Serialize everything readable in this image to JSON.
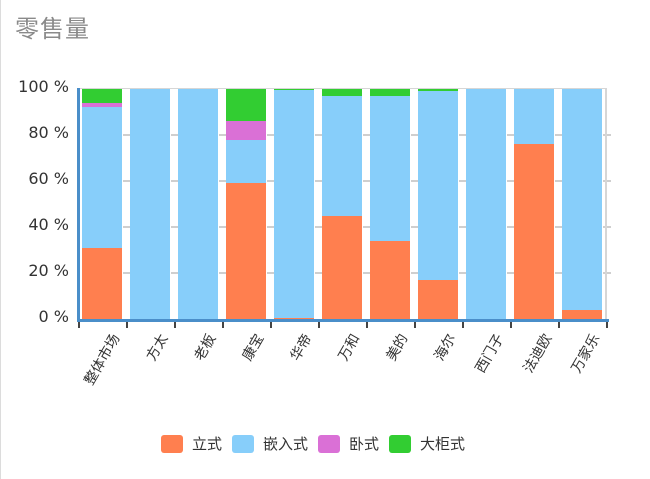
{
  "title": "零售量",
  "legend": [
    {
      "label": "立式",
      "color": "#ff7f4f"
    },
    {
      "label": "嵌入式",
      "color": "#87cefa"
    },
    {
      "label": "卧式",
      "color": "#da70d6"
    },
    {
      "label": "大柜式",
      "color": "#32cd32"
    }
  ],
  "y_ticks": [
    "100 %",
    "80 %",
    "60 %",
    "40 %",
    "20 %",
    "0 %"
  ],
  "chart_data": {
    "type": "bar",
    "stacked": true,
    "title": "零售量",
    "xlabel": "",
    "ylabel": "",
    "ylim": [
      0,
      100
    ],
    "y_unit": "%",
    "y_ticks": [
      0,
      20,
      40,
      60,
      80,
      100
    ],
    "grid": true,
    "legend_position": "bottom",
    "categories": [
      "整体市场",
      "方太",
      "老板",
      "康宝",
      "华帝",
      "万和",
      "美的",
      "海尔",
      "西门子",
      "法迪欧",
      "万家乐"
    ],
    "series": [
      {
        "name": "立式",
        "color": "#ff7f4f",
        "values": [
          31,
          0,
          0,
          59,
          0.5,
          45,
          34,
          17,
          0,
          76,
          4
        ]
      },
      {
        "name": "嵌入式",
        "color": "#87cefa",
        "values": [
          61,
          100,
          100,
          19,
          99,
          52,
          63,
          82,
          100,
          24,
          96
        ]
      },
      {
        "name": "卧式",
        "color": "#da70d6",
        "values": [
          2,
          0,
          0,
          8,
          0,
          0,
          0,
          0,
          0,
          0,
          0
        ]
      },
      {
        "name": "大柜式",
        "color": "#32cd32",
        "values": [
          6,
          0,
          0,
          14,
          0.5,
          3,
          3,
          1,
          0,
          0,
          0
        ]
      }
    ]
  }
}
